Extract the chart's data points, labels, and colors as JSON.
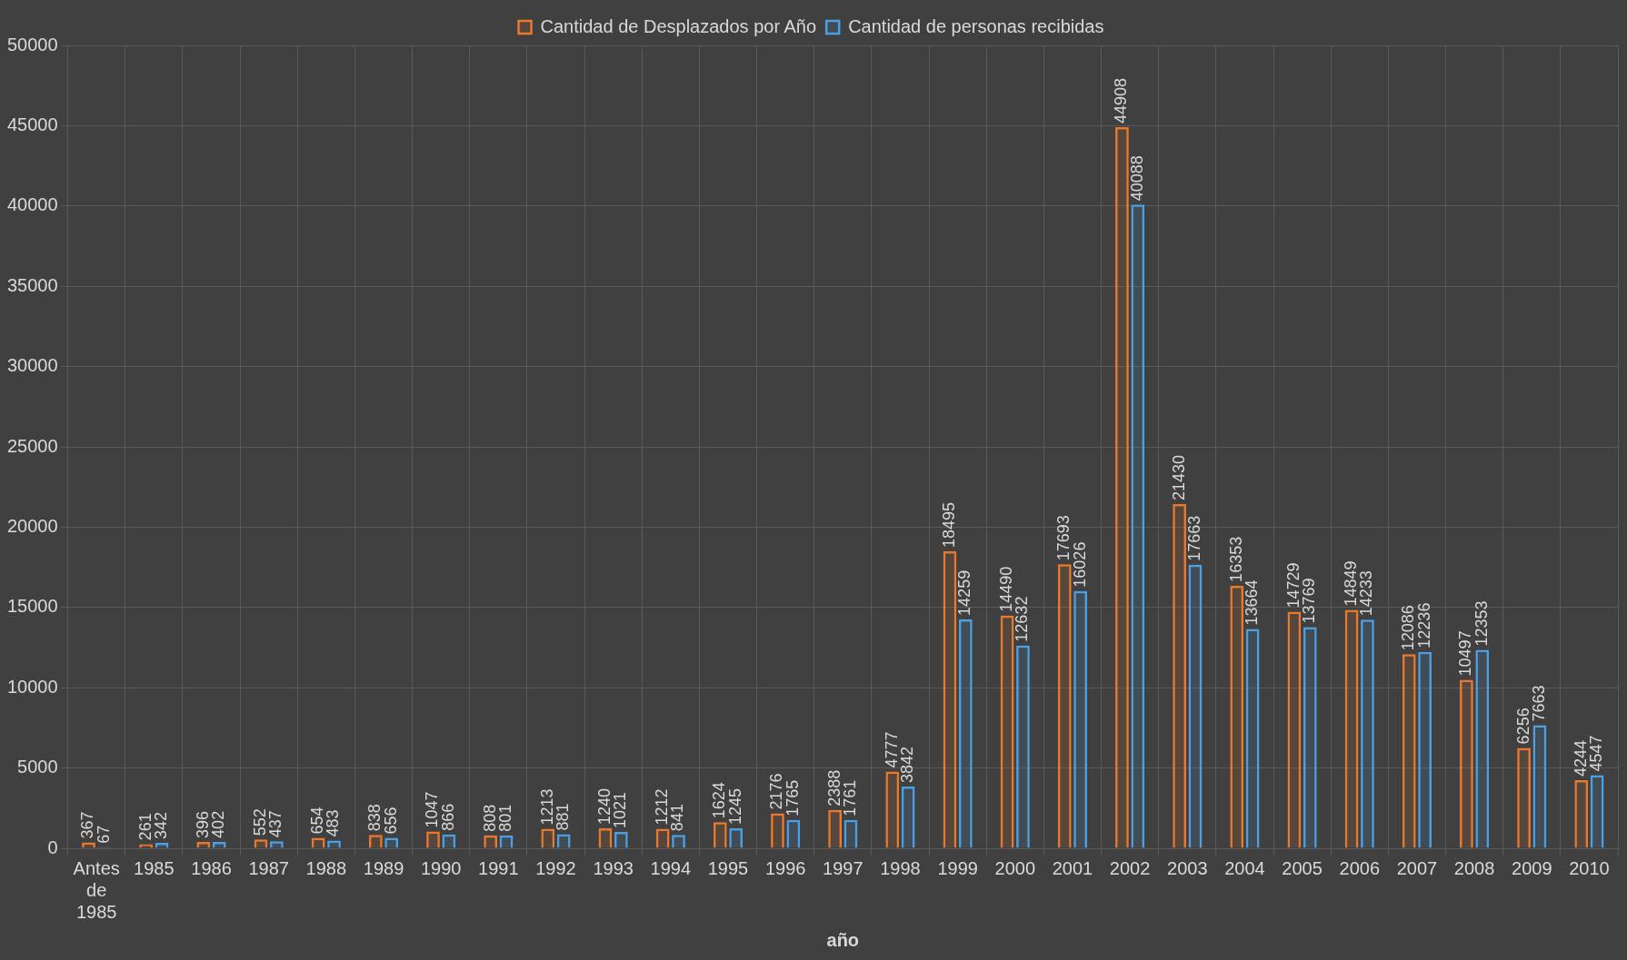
{
  "chart_data": {
    "type": "bar",
    "xlabel": "año",
    "categories": [
      "Antes de 1985",
      "1985",
      "1986",
      "1987",
      "1988",
      "1989",
      "1990",
      "1991",
      "1992",
      "1993",
      "1994",
      "1995",
      "1996",
      "1997",
      "1998",
      "1999",
      "2000",
      "2001",
      "2002",
      "2003",
      "2004",
      "2005",
      "2006",
      "2007",
      "2008",
      "2009",
      "2010"
    ],
    "series": [
      {
        "name": "Cantidad de Desplazados por Año",
        "color": "#e8792f",
        "values": [
          367,
          261,
          396,
          552,
          654,
          838,
          1047,
          808,
          1213,
          1240,
          1212,
          1624,
          2176,
          2388,
          4777,
          18495,
          14490,
          17693,
          44908,
          21430,
          16353,
          14729,
          14849,
          12086,
          10497,
          6256,
          4244
        ]
      },
      {
        "name": "Cantidad de personas recibidas",
        "color": "#4d9fe3",
        "values": [
          67,
          342,
          402,
          437,
          483,
          656,
          866,
          801,
          881,
          1021,
          841,
          1245,
          1765,
          1761,
          3842,
          14259,
          12632,
          16026,
          40088,
          17663,
          13664,
          13769,
          14233,
          12236,
          12353,
          7663,
          4547
        ]
      }
    ],
    "ylim": [
      0,
      50000
    ],
    "yticks": [
      0,
      5000,
      10000,
      15000,
      20000,
      25000,
      30000,
      35000,
      40000,
      45000,
      50000
    ],
    "grid": true,
    "legend": "top",
    "data_labels": true
  }
}
